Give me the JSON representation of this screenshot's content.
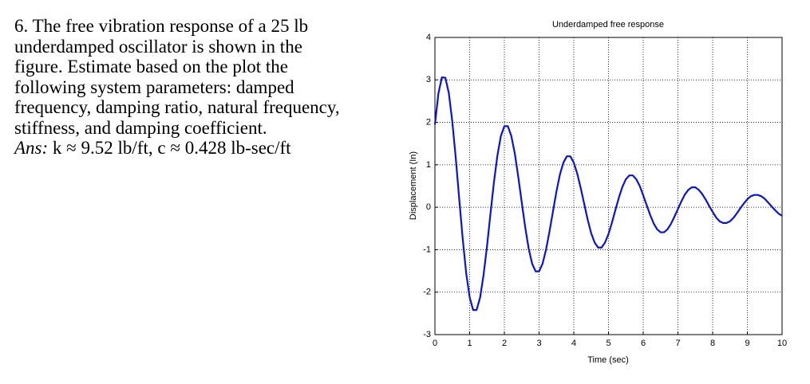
{
  "problem": {
    "lines": [
      "6. The free vibration response of a 25 lb",
      "underdamped oscillator is shown in the",
      "figure. Estimate based on the plot the",
      "following system parameters: damped",
      "frequency, damping ratio, natural frequency,",
      "stiffness, and damping coefficient."
    ],
    "answer_label": "Ans:",
    "answer": "k ≈ 9.52 lb/ft, c ≈ 0.428 lb-sec/ft"
  },
  "chart_data": {
    "type": "line",
    "title": "Underdamped free response",
    "x_label": "Time (sec)",
    "y_label": "Displacement (In)",
    "xlim": [
      0,
      10
    ],
    "ylim": [
      -3,
      4
    ],
    "xticks": [
      0,
      1,
      2,
      3,
      4,
      5,
      6,
      7,
      8,
      9,
      10
    ],
    "yticks": [
      -3,
      -2,
      -1,
      0,
      1,
      2,
      3,
      4
    ],
    "grid": true,
    "x": [
      0,
      0.1,
      0.2,
      0.3,
      0.4,
      0.5,
      0.6,
      0.7,
      0.8,
      0.9,
      1,
      1.1,
      1.2,
      1.3,
      1.4,
      1.5,
      1.6,
      1.7,
      1.8,
      1.9,
      2,
      2.1,
      2.2,
      2.3,
      2.4,
      2.5,
      2.6,
      2.7,
      2.8,
      2.9,
      3,
      3.1,
      3.2,
      3.3,
      3.4,
      3.5,
      3.6,
      3.7,
      3.8,
      3.9,
      4,
      4.1,
      4.2,
      4.3,
      4.4,
      4.5,
      4.6,
      4.7,
      4.8,
      4.9,
      5,
      5.1,
      5.2,
      5.3,
      5.4,
      5.5,
      5.6,
      5.7,
      5.8,
      5.9,
      6,
      6.1,
      6.2,
      6.3,
      6.4,
      6.5,
      6.6,
      6.7,
      6.8,
      6.9,
      7,
      7.1,
      7.2,
      7.3,
      7.4,
      7.5,
      7.6,
      7.7,
      7.8,
      7.9,
      8,
      8.1,
      8.2,
      8.3,
      8.4,
      8.5,
      8.6,
      8.7,
      8.8,
      8.9,
      9,
      9.1,
      9.2,
      9.3,
      9.4,
      9.5,
      9.6,
      9.7,
      9.8,
      9.9,
      10
    ],
    "series": [
      {
        "color": "#0a14d8",
        "values": [
          1.95,
          2.68,
          3.06,
          3.05,
          2.69,
          2.02,
          1.16,
          0.19,
          -0.74,
          -1.55,
          -2.12,
          -2.42,
          -2.42,
          -2.13,
          -1.6,
          -0.92,
          -0.15,
          0.59,
          1.22,
          1.68,
          1.91,
          1.91,
          1.68,
          1.27,
          0.72,
          0.12,
          -0.47,
          -0.97,
          -1.33,
          -1.51,
          -1.51,
          -1.33,
          -1.0,
          -0.57,
          -0.1,
          0.37,
          0.77,
          1.05,
          1.2,
          1.2,
          1.05,
          0.79,
          0.45,
          0.08,
          -0.29,
          -0.61,
          -0.83,
          -0.95,
          -0.95,
          -0.83,
          -0.63,
          -0.36,
          -0.06,
          0.23,
          0.48,
          0.66,
          0.75,
          0.75,
          0.66,
          0.5,
          0.28,
          0.05,
          -0.18,
          -0.38,
          -0.52,
          -0.59,
          -0.59,
          -0.52,
          -0.39,
          -0.22,
          -0.04,
          0.14,
          0.3,
          0.41,
          0.47,
          0.47,
          0.41,
          0.31,
          0.18,
          0.03,
          -0.11,
          -0.24,
          -0.33,
          -0.37,
          -0.37,
          -0.33,
          -0.25,
          -0.14,
          -0.02,
          0.09,
          0.19,
          0.26,
          0.29,
          0.29,
          0.26,
          0.2,
          0.11,
          0.02,
          -0.07,
          -0.15,
          -0.2
        ]
      }
    ]
  }
}
